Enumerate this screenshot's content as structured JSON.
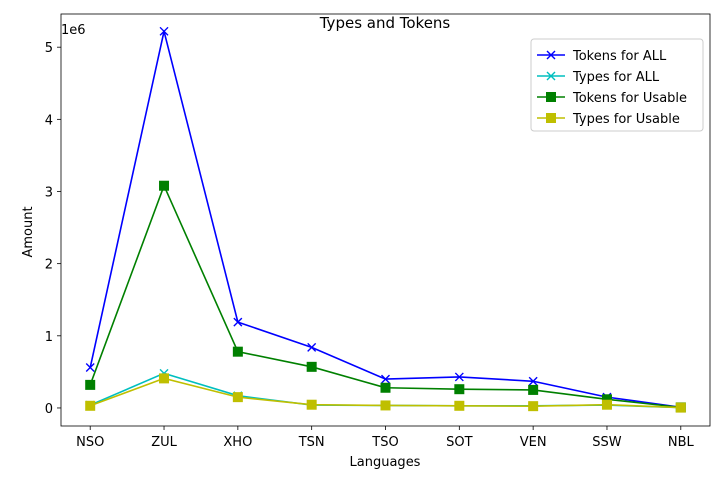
{
  "chart_data": {
    "type": "line",
    "title": "Types and Tokens",
    "xlabel": "Languages",
    "ylabel": "Amount",
    "y_offset_label": "1e6",
    "categories": [
      "NSO",
      "ZUL",
      "XHO",
      "TSN",
      "TSO",
      "SOT",
      "VEN",
      "SSW",
      "NBL"
    ],
    "ylim": [
      -250000,
      5460000
    ],
    "yticks": [
      0,
      1000000,
      2000000,
      3000000,
      4000000,
      5000000
    ],
    "ytick_labels": [
      "0",
      "1",
      "2",
      "3",
      "4",
      "5"
    ],
    "grid": false,
    "legend_position": "top-right",
    "series": [
      {
        "name": "Tokens for ALL",
        "color": "#0000ff",
        "marker": "x",
        "values": [
          560000,
          5220000,
          1190000,
          840000,
          400000,
          430000,
          370000,
          150000,
          10000
        ]
      },
      {
        "name": "Types for ALL",
        "color": "#00bfbf",
        "marker": "x",
        "values": [
          40000,
          480000,
          170000,
          40000,
          35000,
          30000,
          30000,
          40000,
          5000
        ]
      },
      {
        "name": "Tokens for Usable",
        "color": "#008000",
        "marker": "square",
        "values": [
          320000,
          3080000,
          780000,
          570000,
          280000,
          260000,
          250000,
          120000,
          8000
        ]
      },
      {
        "name": "Types for Usable",
        "color": "#bfbf00",
        "marker": "square",
        "values": [
          30000,
          410000,
          150000,
          45000,
          35000,
          30000,
          25000,
          45000,
          5000
        ]
      }
    ]
  }
}
